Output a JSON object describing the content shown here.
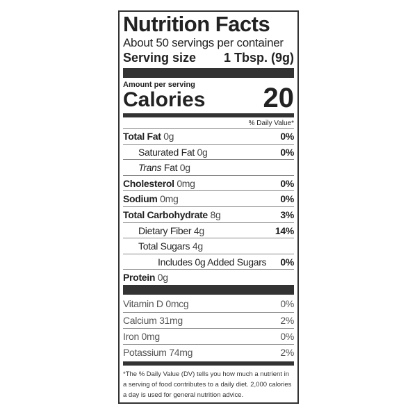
{
  "header": {
    "title": "Nutrition Facts",
    "servings": "About 50 servings per container",
    "serving_size_label": "Serving size",
    "serving_size_value": "1 Tbsp. (9g)"
  },
  "calories": {
    "amount_label": "Amount per serving",
    "label": "Calories",
    "value": "20"
  },
  "dv_header": "% Daily Value*",
  "nutrients": [
    {
      "name": "Total Fat",
      "amount": "0g",
      "dv": "0%",
      "bold": true,
      "indent": 0
    },
    {
      "name": "Saturated Fat",
      "amount": "0g",
      "dv": "0%",
      "bold": false,
      "indent": 1
    },
    {
      "name_italic": "Trans",
      "name": "Fat",
      "amount": "0g",
      "bold": false,
      "indent": 1
    },
    {
      "name": "Cholesterol",
      "amount": "0mg",
      "dv": "0%",
      "bold": true,
      "indent": 0
    },
    {
      "name": "Sodium",
      "amount": "0mg",
      "dv": "0%",
      "bold": true,
      "indent": 0
    },
    {
      "name": "Total Carbohydrate",
      "amount": "8g",
      "dv": "3%",
      "bold": true,
      "indent": 0
    },
    {
      "name": "Dietary Fiber",
      "amount": "4g",
      "dv": "14%",
      "bold": false,
      "indent": 1
    },
    {
      "name": "Total Sugars",
      "amount": "4g",
      "bold": false,
      "indent": 1
    },
    {
      "name": "Includes 0g Added Sugars",
      "dv": "0%",
      "bold": false,
      "indent": 2
    },
    {
      "name": "Protein",
      "amount": "0g",
      "bold": true,
      "indent": 0
    }
  ],
  "vitamins": [
    {
      "name": "Vitamin D",
      "amount": "0mcg",
      "dv": "0%"
    },
    {
      "name": "Calcium",
      "amount": "31mg",
      "dv": "2%"
    },
    {
      "name": "Iron",
      "amount": "0mg",
      "dv": "0%"
    },
    {
      "name": "Potassium",
      "amount": "74mg",
      "dv": "2%"
    }
  ],
  "footnote": "*The % Daily Value (DV) tells you how much a nutrient in a serving of food contributes to a daily diet. 2,000 calories a day is used for general nutrition advice."
}
